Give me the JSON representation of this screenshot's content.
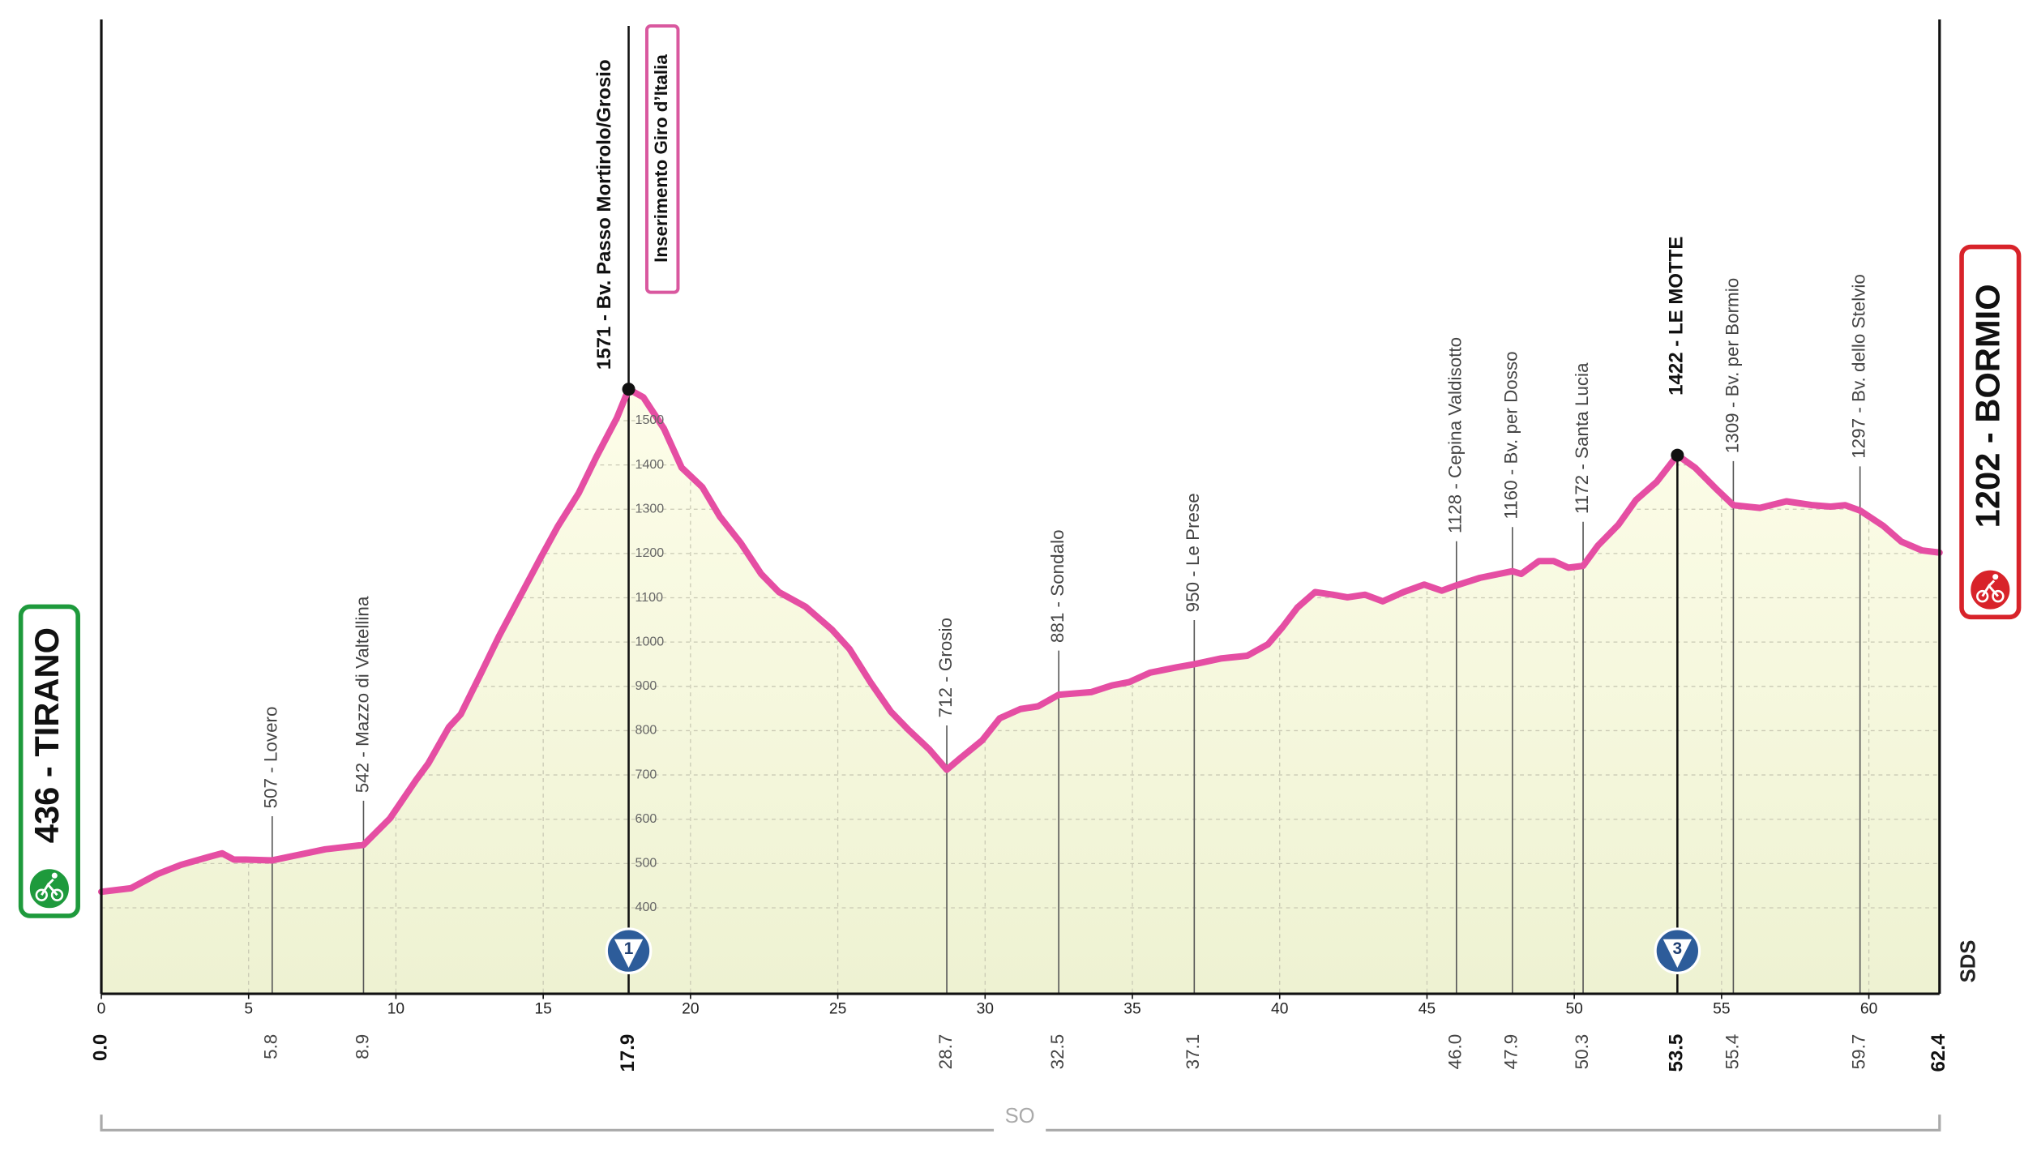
{
  "chart_data": {
    "type": "profile",
    "xlim": [
      0,
      62.4
    ],
    "ylim": [
      200,
      2400
    ],
    "xticks": [
      0,
      5,
      10,
      15,
      20,
      25,
      30,
      35,
      40,
      45,
      50,
      55,
      60
    ],
    "yticks": [
      400,
      500,
      600,
      700,
      800,
      900,
      1000,
      1100,
      1200,
      1300,
      1400,
      1500
    ],
    "grid": true,
    "line_color": "#e54ea3",
    "fill_top": "#fdfde9",
    "fill_bottom": "#eef2d2",
    "profile": {
      "km": [
        0,
        1.0,
        1.9,
        2.7,
        3.6,
        4.1,
        4.5,
        4.9,
        5.8,
        7.6,
        8.9,
        9.8,
        10.7,
        11.1,
        11.8,
        12.2,
        12.9,
        13.5,
        14.2,
        14.9,
        15.5,
        16.2,
        16.8,
        17.5,
        17.9,
        18.4,
        19.1,
        19.7,
        20.4,
        21.0,
        21.7,
        22.4,
        23.0,
        23.9,
        24.8,
        25.4,
        26.1,
        26.8,
        27.4,
        28.1,
        28.7,
        29.2,
        29.9,
        30.5,
        31.2,
        31.8,
        32.5,
        33.6,
        34.3,
        34.9,
        35.6,
        36.5,
        37.1,
        38.0,
        38.9,
        39.6,
        40.1,
        40.6,
        41.2,
        41.8,
        42.3,
        42.9,
        43.5,
        44.2,
        44.9,
        45.5,
        46.0,
        46.8,
        47.9,
        48.2,
        48.8,
        49.3,
        49.8,
        50.3,
        50.8,
        51.5,
        52.1,
        52.8,
        53.5,
        54.1,
        54.8,
        55.4,
        56.3,
        57.2,
        58.1,
        58.7,
        59.2,
        59.7,
        60.5,
        61.1,
        61.8,
        62.4
      ],
      "elevation": [
        436,
        444,
        476,
        497,
        514,
        523,
        509,
        509,
        507,
        532,
        542,
        602,
        690,
        726,
        808,
        837,
        931,
        1013,
        1101,
        1189,
        1262,
        1336,
        1418,
        1506,
        1571,
        1553,
        1482,
        1394,
        1350,
        1283,
        1224,
        1154,
        1113,
        1080,
        1028,
        984,
        910,
        843,
        802,
        758,
        712,
        740,
        778,
        828,
        849,
        855,
        881,
        887,
        902,
        910,
        931,
        943,
        950,
        963,
        969,
        995,
        1034,
        1078,
        1113,
        1107,
        1101,
        1107,
        1092,
        1113,
        1130,
        1116,
        1128,
        1145,
        1160,
        1154,
        1183,
        1183,
        1168,
        1172,
        1218,
        1265,
        1321,
        1362,
        1422,
        1394,
        1347,
        1309,
        1303,
        1318,
        1309,
        1306,
        1309,
        1297,
        1262,
        1227,
        1207,
        1202
      ]
    },
    "waypoints": [
      {
        "kind": "start",
        "km": {
          "value": 0,
          "label": "0.0"
        },
        "elevation": 436,
        "label": "436 - TIRANO",
        "color": "#1e9a3c"
      },
      {
        "kind": "point",
        "km": 5.8,
        "elevation": 507,
        "label": "507 - Lovero"
      },
      {
        "kind": "point",
        "km": 8.9,
        "elevation": 542,
        "label": "542 - Mazzo di Valtellina"
      },
      {
        "kind": "summit",
        "km": 17.9,
        "elevation": 1571,
        "label": "1571 - Bv. Passo Mortirolo/Grosio",
        "climb": 1,
        "note": "Inserimento Giro d’Italia"
      },
      {
        "kind": "point",
        "km": 28.7,
        "elevation": 712,
        "label": "712 - Grosio"
      },
      {
        "kind": "point",
        "km": 32.5,
        "elevation": 881,
        "label": "881 - Sondalo"
      },
      {
        "kind": "point",
        "km": 37.1,
        "elevation": 950,
        "label": "950 - Le Prese"
      },
      {
        "kind": "point",
        "km": {
          "value": 46,
          "label": "46.0"
        },
        "elevation": 1128,
        "label": "1128 - Cepina Valdisotto"
      },
      {
        "kind": "point",
        "km": 47.9,
        "elevation": 1160,
        "label": "1160 - Bv. per Dosso"
      },
      {
        "kind": "point",
        "km": 50.3,
        "elevation": 1172,
        "label": "1172 - Santa Lucia"
      },
      {
        "kind": "summit",
        "km": 53.5,
        "elevation": 1422,
        "label": "1422 - LE MOTTE",
        "climb": 3
      },
      {
        "kind": "point",
        "km": 55.4,
        "elevation": 1309,
        "label": "1309 - Bv. per Bormio"
      },
      {
        "kind": "point",
        "km": 59.7,
        "elevation": 1297,
        "label": "1297 - Bv. dello Stelvio"
      },
      {
        "kind": "finish",
        "km": 62.4,
        "elevation": 1202,
        "label": "1202 - BORMIO",
        "color": "#d8232a"
      }
    ],
    "region": "SO",
    "brand": "SDS"
  }
}
